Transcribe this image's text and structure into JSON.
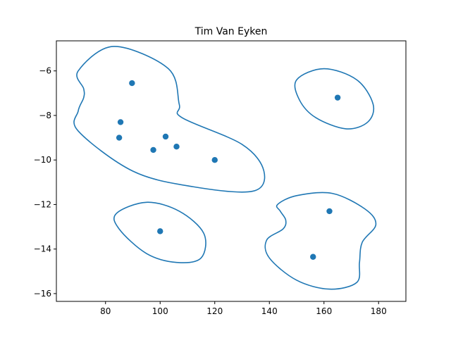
{
  "chart_data": {
    "type": "scatter",
    "title": "Tim Van Eyken",
    "xlabel": "",
    "ylabel": "",
    "xlim": [
      62.0,
      190.0
    ],
    "ylim": [
      -16.35,
      -4.65
    ],
    "xticks": [
      80,
      100,
      120,
      140,
      160,
      180
    ],
    "yticks": [
      -16,
      -14,
      -12,
      -10,
      -8,
      -6
    ],
    "xtick_labels": [
      "80",
      "100",
      "120",
      "140",
      "160",
      "180"
    ],
    "ytick_labels": [
      "−16",
      "−14",
      "−12",
      "−10",
      "−8",
      "−6"
    ],
    "grid": false,
    "legend": "none",
    "colors": {
      "series": "#1f77b4",
      "axes": "#000000",
      "background": "#ffffff"
    },
    "points": [
      {
        "x": 89.7,
        "y": -6.55
      },
      {
        "x": 85.5,
        "y": -8.3
      },
      {
        "x": 85.0,
        "y": -9.0
      },
      {
        "x": 102.0,
        "y": -8.95
      },
      {
        "x": 97.5,
        "y": -9.55
      },
      {
        "x": 106.0,
        "y": -9.4
      },
      {
        "x": 120.0,
        "y": -10.0
      },
      {
        "x": 165.0,
        "y": -7.2
      },
      {
        "x": 100.0,
        "y": -13.2
      },
      {
        "x": 162.0,
        "y": -12.3
      },
      {
        "x": 156.0,
        "y": -14.35
      }
    ],
    "contours": [
      {
        "points": [
          [
            72,
            -6.8
          ],
          [
            70,
            -6
          ],
          [
            83,
            -4.9
          ],
          [
            103,
            -5.9
          ],
          [
            107,
            -7.5
          ],
          [
            108,
            -8.1
          ],
          [
            130,
            -9.3
          ],
          [
            138,
            -10.5
          ],
          [
            134,
            -11.4
          ],
          [
            112,
            -11.2
          ],
          [
            90,
            -10.5
          ],
          [
            70,
            -8.7
          ],
          [
            70,
            -7.8
          ],
          [
            72,
            -7.2
          ]
        ]
      },
      {
        "points": [
          [
            150,
            -6.4
          ],
          [
            160,
            -5.9
          ],
          [
            172,
            -6.4
          ],
          [
            178,
            -7.5
          ],
          [
            176,
            -8.3
          ],
          [
            168,
            -8.6
          ],
          [
            157,
            -8.1
          ],
          [
            151,
            -7.3
          ]
        ]
      },
      {
        "points": [
          [
            84,
            -12.4
          ],
          [
            95,
            -11.9
          ],
          [
            107,
            -12.3
          ],
          [
            116,
            -13.3
          ],
          [
            115,
            -14.4
          ],
          [
            106,
            -14.6
          ],
          [
            95,
            -14.2
          ],
          [
            85,
            -13.1
          ]
        ]
      },
      {
        "points": [
          [
            143,
            -12.0
          ],
          [
            150,
            -11.6
          ],
          [
            163,
            -11.5
          ],
          [
            175,
            -12.2
          ],
          [
            179,
            -12.9
          ],
          [
            174,
            -13.7
          ],
          [
            173,
            -14.6
          ],
          [
            172,
            -15.5
          ],
          [
            162,
            -15.8
          ],
          [
            150,
            -15.4
          ],
          [
            140,
            -14.4
          ],
          [
            139,
            -13.6
          ],
          [
            145,
            -13.1
          ],
          [
            146,
            -12.7
          ],
          [
            144,
            -12.3
          ]
        ]
      }
    ]
  }
}
